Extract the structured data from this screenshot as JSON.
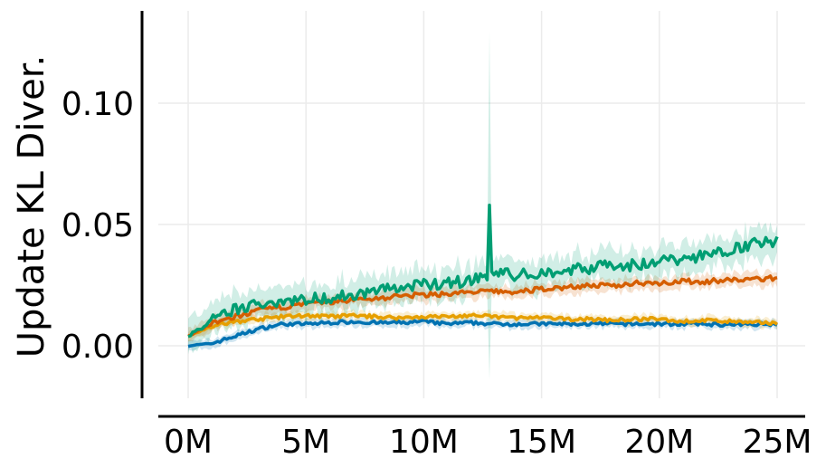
{
  "chart_data": {
    "type": "line",
    "title": "",
    "xlabel": "",
    "ylabel": "Update KL Diver.",
    "xlim": [
      0,
      25000000
    ],
    "ylim": [
      -0.022,
      0.138
    ],
    "grid": true,
    "legend": "none",
    "x_ticks": [
      {
        "value": 0,
        "label": "0M"
      },
      {
        "value": 5000000,
        "label": "5M"
      },
      {
        "value": 10000000,
        "label": "10M"
      },
      {
        "value": 15000000,
        "label": "15M"
      },
      {
        "value": 20000000,
        "label": "20M"
      },
      {
        "value": 25000000,
        "label": "25M"
      }
    ],
    "y_ticks": [
      {
        "value": 0.0,
        "label": "0.00"
      },
      {
        "value": 0.05,
        "label": "0.05"
      },
      {
        "value": 0.1,
        "label": "0.10"
      }
    ],
    "x": [
      0,
      1000000,
      2000000,
      3000000,
      4000000,
      5000000,
      6000000,
      7000000,
      8000000,
      9000000,
      10000000,
      11000000,
      12000000,
      13000000,
      14000000,
      15000000,
      16000000,
      17000000,
      18000000,
      19000000,
      20000000,
      21000000,
      22000000,
      23000000,
      24000000,
      25000000
    ],
    "series": [
      {
        "color": "#0072B2",
        "values": [
          0.0,
          0.001,
          0.004,
          0.007,
          0.009,
          0.009,
          0.0095,
          0.01,
          0.0095,
          0.0095,
          0.01,
          0.009,
          0.0095,
          0.009,
          0.009,
          0.009,
          0.009,
          0.009,
          0.009,
          0.009,
          0.009,
          0.009,
          0.009,
          0.0085,
          0.009,
          0.009
        ],
        "band": 0.002
      },
      {
        "color": "#E69F00",
        "values": [
          0.004,
          0.008,
          0.01,
          0.011,
          0.012,
          0.0125,
          0.012,
          0.0125,
          0.012,
          0.0115,
          0.012,
          0.012,
          0.0125,
          0.012,
          0.0115,
          0.0115,
          0.011,
          0.011,
          0.0105,
          0.011,
          0.011,
          0.01,
          0.0105,
          0.01,
          0.0095,
          0.0095
        ],
        "band": 0.002
      },
      {
        "color": "#D55E00",
        "values": [
          0.004,
          0.009,
          0.012,
          0.0145,
          0.016,
          0.017,
          0.018,
          0.019,
          0.0195,
          0.0205,
          0.021,
          0.0215,
          0.022,
          0.0225,
          0.022,
          0.0235,
          0.024,
          0.025,
          0.0245,
          0.026,
          0.026,
          0.0265,
          0.0265,
          0.027,
          0.0275,
          0.028
        ],
        "band": 0.003
      },
      {
        "color": "#009E73",
        "values": [
          0.004,
          0.01,
          0.015,
          0.017,
          0.019,
          0.019,
          0.02,
          0.021,
          0.023,
          0.024,
          0.025,
          0.026,
          0.027,
          0.03,
          0.029,
          0.03,
          0.031,
          0.032,
          0.034,
          0.033,
          0.035,
          0.036,
          0.037,
          0.04,
          0.042,
          0.043
        ],
        "band": 0.007,
        "spike": {
          "x": 12800000,
          "value": 0.058,
          "band_low": -0.014,
          "band_high": 0.13
        }
      }
    ]
  }
}
